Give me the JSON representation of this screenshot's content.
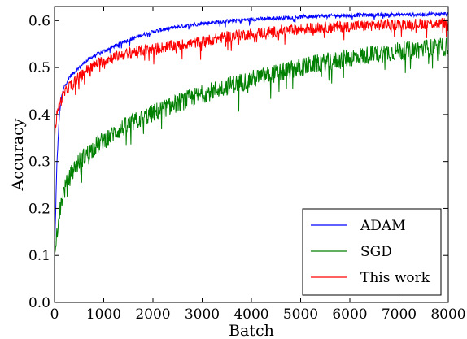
{
  "chart_data": {
    "type": "line",
    "xlabel": "Batch",
    "ylabel": "Accuracy",
    "xlim": [
      0,
      8000
    ],
    "ylim": [
      0.0,
      0.63
    ],
    "x_ticks": [
      0,
      1000,
      2000,
      3000,
      4000,
      5000,
      6000,
      7000,
      8000
    ],
    "y_ticks": [
      0.0,
      0.1,
      0.2,
      0.3,
      0.4,
      0.5,
      0.6
    ],
    "x_tick_labels": [
      "0",
      "1000",
      "2000",
      "3000",
      "4000",
      "5000",
      "6000",
      "7000",
      "8000"
    ],
    "y_tick_labels": [
      "0.0",
      "0.1",
      "0.2",
      "0.3",
      "0.4",
      "0.5",
      "0.6"
    ],
    "grid": false,
    "legend_position": "bottom-right",
    "series": [
      {
        "name": "ADAM",
        "color": "#0000ff",
        "x": [
          0,
          25,
          50,
          100,
          150,
          200,
          300,
          400,
          500,
          600,
          800,
          1000,
          1200,
          1400,
          1600,
          1800,
          2000,
          2200,
          2400,
          2600,
          2800,
          3000,
          3200,
          3400,
          3600,
          3800,
          4000,
          4200,
          4400,
          4600,
          4800,
          5000,
          5200,
          5400,
          5600,
          5800,
          6000,
          6200,
          6400,
          6600,
          6800,
          7000,
          7200,
          7400,
          7600,
          7800,
          8000
        ],
        "y": [
          0.1,
          0.2,
          0.3,
          0.4,
          0.44,
          0.46,
          0.48,
          0.49,
          0.5,
          0.51,
          0.525,
          0.535,
          0.545,
          0.555,
          0.562,
          0.57,
          0.576,
          0.581,
          0.585,
          0.588,
          0.591,
          0.594,
          0.596,
          0.598,
          0.6,
          0.601,
          0.603,
          0.604,
          0.605,
          0.606,
          0.607,
          0.608,
          0.609,
          0.61,
          0.61,
          0.611,
          0.611,
          0.612,
          0.612,
          0.612,
          0.613,
          0.613,
          0.613,
          0.613,
          0.614,
          0.614,
          0.614
        ],
        "noise": 0.004
      },
      {
        "name": "SGD",
        "color": "#008000",
        "x": [
          0,
          25,
          50,
          100,
          150,
          200,
          300,
          400,
          500,
          600,
          800,
          1000,
          1200,
          1400,
          1600,
          1800,
          2000,
          2200,
          2400,
          2600,
          2800,
          3000,
          3200,
          3400,
          3600,
          3800,
          4000,
          4200,
          4400,
          4600,
          4800,
          5000,
          5200,
          5400,
          5600,
          5800,
          6000,
          6200,
          6400,
          6600,
          6800,
          7000,
          7200,
          7400,
          7600,
          7800,
          8000
        ],
        "y": [
          0.07,
          0.12,
          0.15,
          0.19,
          0.22,
          0.24,
          0.265,
          0.285,
          0.3,
          0.31,
          0.33,
          0.345,
          0.36,
          0.372,
          0.383,
          0.393,
          0.403,
          0.412,
          0.42,
          0.428,
          0.436,
          0.443,
          0.45,
          0.457,
          0.463,
          0.469,
          0.475,
          0.48,
          0.485,
          0.49,
          0.495,
          0.5,
          0.505,
          0.509,
          0.513,
          0.517,
          0.521,
          0.524,
          0.527,
          0.53,
          0.533,
          0.535,
          0.537,
          0.539,
          0.541,
          0.543,
          0.545
        ],
        "noise": 0.02
      },
      {
        "name": "This work",
        "color": "#ff0000",
        "x": [
          0,
          25,
          50,
          100,
          150,
          200,
          300,
          400,
          500,
          600,
          800,
          1000,
          1200,
          1400,
          1600,
          1800,
          2000,
          2200,
          2400,
          2600,
          2800,
          3000,
          3200,
          3400,
          3600,
          3800,
          4000,
          4200,
          4400,
          4600,
          4800,
          5000,
          5200,
          5400,
          5600,
          5800,
          6000,
          6200,
          6400,
          6600,
          6800,
          7000,
          7200,
          7400,
          7600,
          7800,
          8000
        ],
        "y": [
          0.35,
          0.38,
          0.4,
          0.42,
          0.435,
          0.445,
          0.46,
          0.47,
          0.48,
          0.49,
          0.505,
          0.515,
          0.522,
          0.528,
          0.533,
          0.537,
          0.54,
          0.543,
          0.546,
          0.549,
          0.552,
          0.556,
          0.56,
          0.564,
          0.567,
          0.57,
          0.572,
          0.574,
          0.576,
          0.578,
          0.58,
          0.582,
          0.584,
          0.585,
          0.586,
          0.587,
          0.588,
          0.589,
          0.59,
          0.591,
          0.592,
          0.592,
          0.593,
          0.593,
          0.594,
          0.594,
          0.595
        ],
        "noise": 0.012
      }
    ]
  }
}
